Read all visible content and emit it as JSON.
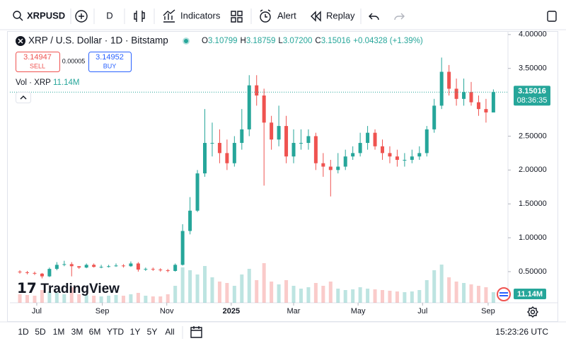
{
  "toolbar": {
    "symbol": "XRPUSD",
    "interval": "D",
    "indicators": "Indicators",
    "alert": "Alert",
    "replay": "Replay"
  },
  "legend": {
    "title": "XRP / U.S. Dollar · 1D · Bitstamp",
    "open_label": "O",
    "open": "3.10799",
    "high_label": "H",
    "high": "3.18759",
    "low_label": "L",
    "low": "3.07200",
    "close_label": "C",
    "close": "3.15016",
    "change": "+0.04328 (+1.39%)",
    "sell_price": "3.14947",
    "sell": "SELL",
    "spread": "0.00005",
    "buy_price": "3.14952",
    "buy": "BUY",
    "volume_title": "Vol · XRP",
    "volume_value": "11.14M"
  },
  "chart_data": {
    "type": "candlestick",
    "x": [
      0,
      7,
      14,
      21,
      28,
      35,
      42,
      49,
      56,
      63,
      70,
      77,
      84,
      91,
      98,
      105,
      112,
      119,
      126,
      133,
      140,
      147,
      154,
      161,
      168,
      175,
      182,
      189,
      196,
      203,
      210,
      217,
      224,
      231,
      238,
      245,
      252,
      259,
      266,
      273,
      280,
      287,
      294,
      301,
      308,
      315,
      322,
      329,
      336,
      343,
      350,
      357,
      364,
      371,
      378,
      385,
      392,
      399,
      406,
      413,
      420,
      427,
      434,
      441,
      448
    ],
    "open": [
      0.5,
      0.49,
      0.48,
      0.47,
      0.43,
      0.54,
      0.6,
      0.61,
      0.58,
      0.56,
      0.6,
      0.57,
      0.57,
      0.58,
      0.59,
      0.58,
      0.62,
      0.53,
      0.54,
      0.53,
      0.52,
      0.51,
      0.6,
      1.1,
      1.4,
      1.95,
      2.4,
      2.4,
      2.25,
      2.1,
      2.4,
      2.6,
      3.25,
      3.1,
      2.7,
      2.45,
      2.65,
      2.2,
      2.4,
      2.4,
      2.5,
      2.1,
      2.05,
      2.0,
      2.05,
      2.2,
      2.25,
      2.4,
      2.55,
      2.35,
      2.25,
      2.2,
      2.15,
      2.15,
      2.2,
      2.25,
      2.6,
      2.95,
      3.45,
      3.2,
      3.05,
      3.15,
      3.0,
      2.9,
      2.85
    ],
    "high": [
      0.52,
      0.51,
      0.5,
      0.48,
      0.56,
      0.64,
      0.66,
      0.64,
      0.58,
      0.62,
      0.62,
      0.6,
      0.6,
      0.62,
      0.61,
      0.65,
      0.64,
      0.56,
      0.56,
      0.55,
      0.54,
      0.62,
      1.2,
      1.6,
      2.0,
      2.9,
      2.7,
      2.6,
      2.45,
      2.5,
      2.9,
      3.4,
      3.4,
      3.2,
      2.8,
      2.95,
      2.8,
      2.6,
      2.6,
      2.6,
      2.55,
      2.25,
      2.15,
      2.25,
      2.3,
      2.35,
      2.55,
      2.65,
      2.6,
      2.45,
      2.35,
      2.3,
      2.25,
      2.3,
      2.35,
      2.65,
      3.05,
      3.66,
      3.55,
      3.35,
      3.35,
      3.3,
      3.1,
      3.05,
      3.19
    ],
    "low": [
      0.47,
      0.46,
      0.45,
      0.4,
      0.42,
      0.52,
      0.58,
      0.43,
      0.54,
      0.55,
      0.56,
      0.55,
      0.56,
      0.57,
      0.56,
      0.57,
      0.5,
      0.51,
      0.51,
      0.5,
      0.49,
      0.5,
      0.59,
      1.05,
      1.38,
      1.9,
      2.2,
      2.1,
      2.0,
      2.05,
      2.3,
      2.5,
      2.95,
      1.77,
      2.3,
      2.35,
      2.1,
      2.1,
      2.3,
      2.3,
      2.0,
      1.9,
      1.61,
      1.95,
      2.0,
      2.15,
      2.2,
      2.3,
      2.3,
      2.15,
      2.1,
      2.05,
      2.05,
      2.1,
      2.15,
      2.2,
      2.55,
      2.9,
      3.1,
      2.95,
      2.95,
      2.95,
      2.8,
      2.7,
      2.85
    ],
    "close": [
      0.49,
      0.48,
      0.47,
      0.43,
      0.54,
      0.6,
      0.61,
      0.58,
      0.56,
      0.6,
      0.57,
      0.57,
      0.58,
      0.59,
      0.58,
      0.62,
      0.53,
      0.54,
      0.53,
      0.52,
      0.51,
      0.6,
      1.1,
      1.4,
      1.95,
      2.4,
      2.4,
      2.25,
      2.1,
      2.4,
      2.6,
      3.25,
      3.1,
      2.7,
      2.45,
      2.65,
      2.2,
      2.4,
      2.4,
      2.5,
      2.1,
      2.05,
      2.0,
      2.05,
      2.2,
      2.25,
      2.4,
      2.55,
      2.35,
      2.25,
      2.2,
      2.15,
      2.15,
      2.2,
      2.25,
      2.6,
      2.95,
      3.45,
      3.2,
      3.05,
      3.15,
      3.0,
      2.9,
      2.85,
      3.15
    ],
    "volume": [
      60,
      55,
      50,
      90,
      80,
      70,
      60,
      110,
      60,
      55,
      50,
      45,
      50,
      55,
      50,
      60,
      70,
      50,
      45,
      45,
      60,
      120,
      250,
      230,
      200,
      260,
      180,
      150,
      140,
      120,
      200,
      240,
      160,
      280,
      150,
      130,
      160,
      120,
      100,
      110,
      140,
      120,
      150,
      100,
      90,
      95,
      110,
      100,
      95,
      90,
      85,
      80,
      75,
      80,
      90,
      160,
      230,
      270,
      180,
      150,
      140,
      130,
      120,
      110,
      75
    ],
    "up_color": "#26a69a",
    "down_color": "#ef5350",
    "xlim": [
      -9.4,
      461.8
    ],
    "ylim": [
      0.04,
      4.04
    ],
    "xticks": [
      {
        "value": 16,
        "label": "Jul"
      },
      {
        "value": 78,
        "label": "Sep"
      },
      {
        "value": 139,
        "label": "Nov"
      },
      {
        "value": 200,
        "label": "2025"
      },
      {
        "value": 259,
        "label": "Mar"
      },
      {
        "value": 320,
        "label": "May"
      },
      {
        "value": 381,
        "label": "Jul"
      },
      {
        "value": 443,
        "label": "Sep"
      }
    ],
    "yticks": [
      {
        "value": 4,
        "label": "4.00000"
      },
      {
        "value": 3.5,
        "label": "3.50000"
      },
      {
        "value": 2.5,
        "label": "2.50000"
      },
      {
        "value": 2,
        "label": "2.00000"
      },
      {
        "value": 1.5,
        "label": "1.50000"
      },
      {
        "value": 1,
        "label": "1.00000"
      },
      {
        "value": 0.5,
        "label": "0.50000"
      }
    ],
    "last_price": {
      "value": 3.15016,
      "label": "3.15016"
    },
    "countdown": "08:36:35",
    "volume_label": "11.14M"
  },
  "watermark": "TradingView",
  "range_bar": {
    "ranges": [
      "1D",
      "5D",
      "1M",
      "3M",
      "6M",
      "YTD",
      "1Y",
      "5Y",
      "All"
    ],
    "time": "15:23:26 UTC"
  }
}
